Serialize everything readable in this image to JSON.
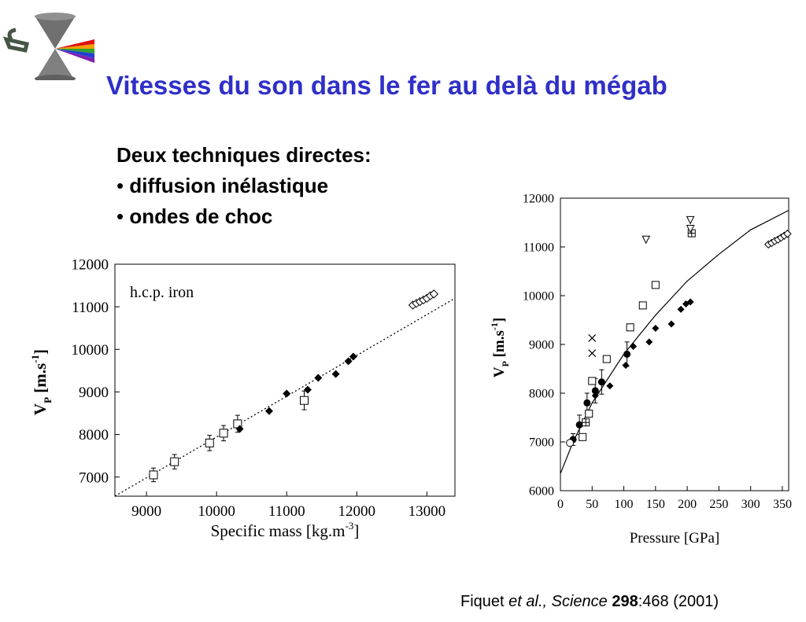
{
  "slide": {
    "title": "Vitesses du son dans le fer au delà du mégab",
    "bullet_heading": "Deux techniques directes:",
    "bullets": [
      "diffusion inélastique",
      "ondes de choc"
    ],
    "bullet_marker": "•",
    "citation": {
      "author": "Fiquet ",
      "etal": "et al., Science ",
      "volume": "298",
      "rest": ":468 (2001)"
    },
    "logo_icon": "hourglass-laser-logo-icon",
    "title_color": "#2f2fc8"
  },
  "chart_data": [
    {
      "type": "scatter",
      "annotation": "h.c.p. iron",
      "xlabel": {
        "main": "Specific mass [kg.m",
        "sup": "-3",
        "tail": "]"
      },
      "ylabel": {
        "v": "V",
        "sub": "P",
        "unit": " [m.s",
        "sup": "-1",
        "tail": "]"
      },
      "xlim": [
        8550,
        13400
      ],
      "ylim": [
        6550,
        12000
      ],
      "x_ticks": [
        9000,
        10000,
        11000,
        12000,
        13000
      ],
      "y_ticks": [
        7000,
        8000,
        9000,
        10000,
        11000,
        12000
      ],
      "series": [
        {
          "marker": "open-square",
          "points": [
            [
              9100,
              7050,
              160
            ],
            [
              9400,
              7360,
              170
            ],
            [
              9900,
              7800,
              180
            ],
            [
              10100,
              8030,
              180
            ],
            [
              10300,
              8250,
              200
            ],
            [
              11250,
              8800,
              220
            ]
          ]
        },
        {
          "marker": "filled-diamond",
          "points": [
            [
              10330,
              8130
            ],
            [
              10750,
              8550
            ],
            [
              11000,
              8960
            ],
            [
              11300,
              9050
            ],
            [
              11450,
              9330
            ],
            [
              11700,
              9420
            ],
            [
              11880,
              9720
            ],
            [
              11950,
              9830
            ]
          ]
        },
        {
          "marker": "open-diamond",
          "points": [
            [
              12800,
              11040
            ],
            [
              12850,
              11080
            ],
            [
              12900,
              11120
            ],
            [
              12950,
              11160
            ],
            [
              13000,
              11200
            ],
            [
              13050,
              11260
            ],
            [
              13100,
              11300
            ]
          ]
        }
      ],
      "fit_line": [
        [
          8550,
          6550
        ],
        [
          13400,
          11200
        ]
      ]
    },
    {
      "type": "scatter",
      "xlabel": "Pressure [GPa]",
      "ylabel": {
        "v": "V",
        "sub": "P",
        "unit": " [m.s",
        "sup": "-1",
        "tail": "]"
      },
      "xlim": [
        0,
        360
      ],
      "ylim": [
        6000,
        12000
      ],
      "x_ticks": [
        0,
        50,
        100,
        150,
        200,
        250,
        300,
        350
      ],
      "y_ticks": [
        6000,
        7000,
        8000,
        9000,
        10000,
        11000,
        12000
      ],
      "series": [
        {
          "marker": "filled-circle",
          "points": [
            [
              20,
              7050,
              120
            ],
            [
              30,
              7350,
              200
            ],
            [
              42,
              7800,
              200
            ],
            [
              55,
              8050,
              250
            ],
            [
              65,
              8230,
              250
            ],
            [
              105,
              8800,
              250
            ]
          ]
        },
        {
          "marker": "open-circle",
          "points": [
            [
              15,
              6980
            ]
          ]
        },
        {
          "marker": "open-square",
          "points": [
            [
              35,
              7100
            ],
            [
              45,
              7580
            ],
            [
              50,
              8250
            ],
            [
              73,
              8700
            ],
            [
              110,
              9350
            ],
            [
              130,
              9800
            ],
            [
              150,
              10220
            ]
          ]
        },
        {
          "marker": "crossed-square",
          "points": [
            [
              40,
              7400
            ],
            [
              207,
              11280
            ]
          ]
        },
        {
          "marker": "filled-diamond",
          "points": [
            [
              55,
              7950
            ],
            [
              78,
              8150
            ],
            [
              103,
              8570
            ],
            [
              115,
              8960
            ],
            [
              140,
              9050
            ],
            [
              150,
              9330
            ],
            [
              175,
              9420
            ],
            [
              190,
              9720
            ],
            [
              198,
              9830
            ],
            [
              205,
              9870
            ]
          ]
        },
        {
          "marker": "cross",
          "points": [
            [
              50,
              8820
            ],
            [
              50,
              9130
            ]
          ]
        },
        {
          "marker": "open-triangle-down",
          "points": [
            [
              135,
              11150
            ],
            [
              205,
              11550
            ],
            [
              205,
              11370
            ]
          ]
        },
        {
          "marker": "open-diamond",
          "points": [
            [
              328,
              11050
            ],
            [
              333,
              11080
            ],
            [
              338,
              11120
            ],
            [
              343,
              11150
            ],
            [
              348,
              11190
            ],
            [
              353,
              11230
            ],
            [
              358,
              11270
            ]
          ]
        }
      ],
      "fit_curve": [
        [
          0,
          6350
        ],
        [
          20,
          7000
        ],
        [
          50,
          7800
        ],
        [
          100,
          8800
        ],
        [
          150,
          9600
        ],
        [
          200,
          10300
        ],
        [
          250,
          10850
        ],
        [
          300,
          11350
        ],
        [
          360,
          11750
        ]
      ]
    }
  ]
}
